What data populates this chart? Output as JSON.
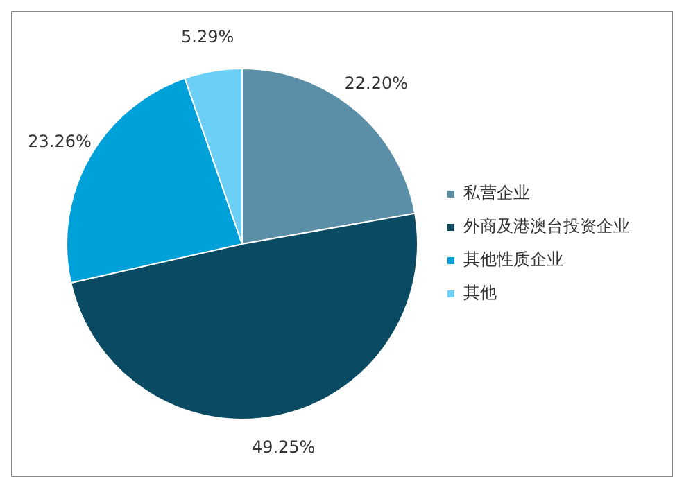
{
  "chart_data": {
    "type": "pie",
    "categories": [
      "私营企业",
      "外商及港澳台投资企业",
      "其他性质企业",
      "其他"
    ],
    "values": [
      22.2,
      49.25,
      23.26,
      5.29
    ],
    "colors": [
      "#5b8fa8",
      "#0b4a63",
      "#00a0d8",
      "#6ccff6"
    ],
    "value_labels": [
      "22.20%",
      "49.25%",
      "23.26%",
      "5.29%"
    ],
    "legend": "right"
  }
}
